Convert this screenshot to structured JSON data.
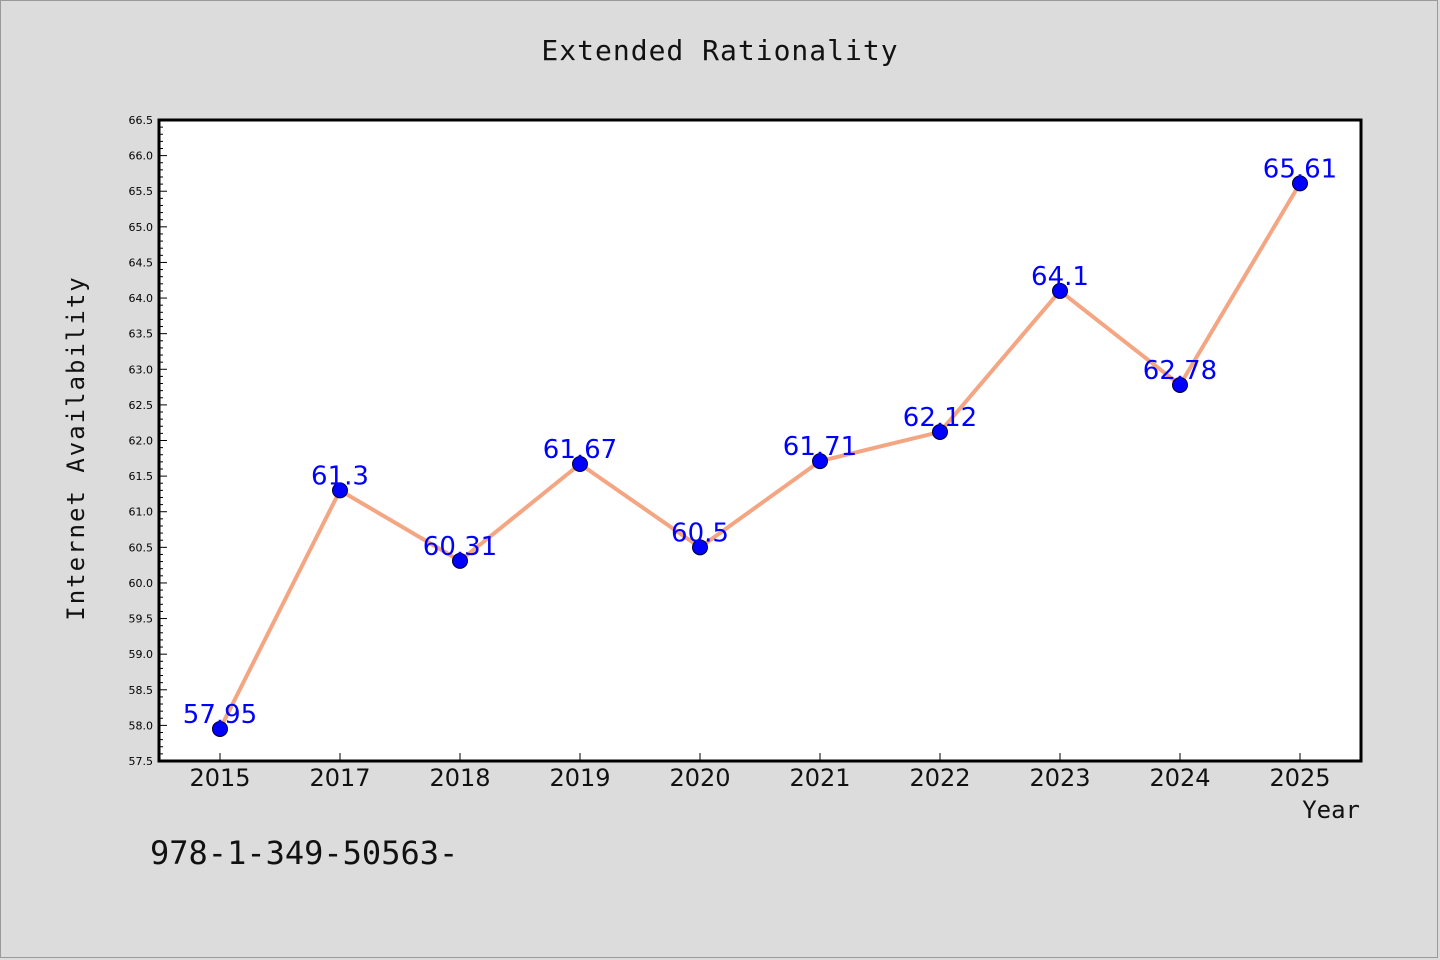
{
  "chart_data": {
    "type": "line",
    "title": "Extended Rationality",
    "xlabel": "Year",
    "ylabel": "Internet Availability",
    "categories": [
      "2015",
      "2017",
      "2018",
      "2019",
      "2020",
      "2021",
      "2022",
      "2023",
      "2024",
      "2025"
    ],
    "series": [
      {
        "values": [
          57.95,
          61.3,
          60.31,
          61.67,
          60.5,
          61.71,
          62.12,
          64.1,
          62.78,
          65.61
        ],
        "data_labels": [
          "57.95",
          "61.3",
          "60.31",
          "61.67",
          "60.5",
          "61.71",
          "62.12",
          "64.1",
          "62.78",
          "65.61"
        ]
      }
    ],
    "ylim": [
      57.5,
      66.5
    ],
    "yticks": [
      "57.5",
      "58.0",
      "58.5",
      "59.0",
      "59.5",
      "60.0",
      "60.5",
      "61.0",
      "61.5",
      "62.0",
      "62.5",
      "63.0",
      "63.5",
      "64.0",
      "64.5",
      "65.0",
      "65.5",
      "66.0",
      "66.5"
    ],
    "grid": false,
    "line_color": "#f4a582",
    "marker_color": "#0000ff",
    "label_color": "#0000ff"
  },
  "footnote": "978-1-349-50563-"
}
